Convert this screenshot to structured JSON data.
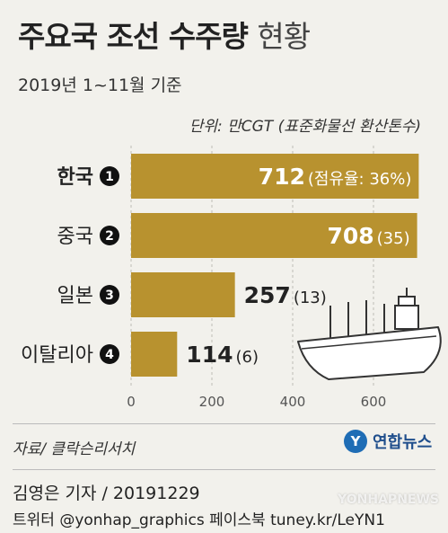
{
  "header": {
    "title_main": "주요국 조선 수주량",
    "title_tail": "현황",
    "subtitle": "2019년 1~11월 기준",
    "unit": "단위: 만CGT (표준화물선 환산톤수)"
  },
  "chart_data": {
    "type": "bar",
    "orientation": "horizontal",
    "categories": [
      "한국",
      "중국",
      "일본",
      "이탈리아"
    ],
    "ranks": [
      "1",
      "2",
      "3",
      "4"
    ],
    "values": [
      712,
      708,
      257,
      114
    ],
    "shares": [
      36,
      35,
      13,
      6
    ],
    "value_labels": [
      "712",
      "708",
      "257",
      "114"
    ],
    "share_labels": [
      "(점유율: 36%)",
      "(35)",
      "(13)",
      "(6)"
    ],
    "xlim": [
      0,
      720
    ],
    "x_ticks": [
      "0",
      "200",
      "400",
      "600"
    ],
    "colors": {
      "bar": "#b8922f",
      "inner_label": "#ffffff",
      "outer_label": "#222222",
      "rank_badge": "#111111"
    }
  },
  "footer": {
    "source": "자료/ 클락슨리서치",
    "logo_text": "연합뉴스",
    "reporter": "김영은 기자 / 20191229",
    "social": "트위터 @yonhap_graphics  페이스북 tuney.kr/LeYN1",
    "watermark": "YONHAPNEWS"
  }
}
